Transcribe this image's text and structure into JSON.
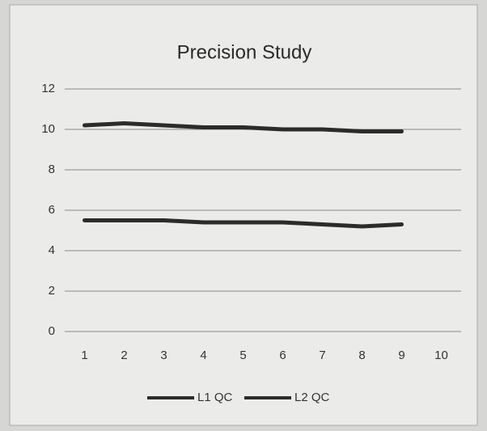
{
  "chart_data": {
    "type": "line",
    "title": "Precision Study",
    "categories": [
      "1",
      "2",
      "3",
      "4",
      "5",
      "6",
      "7",
      "8",
      "9",
      "10"
    ],
    "series": [
      {
        "name": "L1 QC",
        "color": "#2b2b2b",
        "values": [
          5.5,
          5.5,
          5.5,
          5.4,
          5.4,
          5.4,
          5.3,
          5.2,
          5.3,
          null
        ]
      },
      {
        "name": "L2 QC",
        "color": "#2b2b2b",
        "values": [
          10.2,
          10.3,
          10.2,
          10.1,
          10.1,
          10.0,
          10.0,
          9.9,
          9.9,
          null
        ]
      }
    ],
    "ylim": [
      0,
      12
    ],
    "yticks": [
      0,
      2,
      4,
      6,
      8,
      10,
      12
    ],
    "grid": true,
    "legend": "bottom"
  }
}
